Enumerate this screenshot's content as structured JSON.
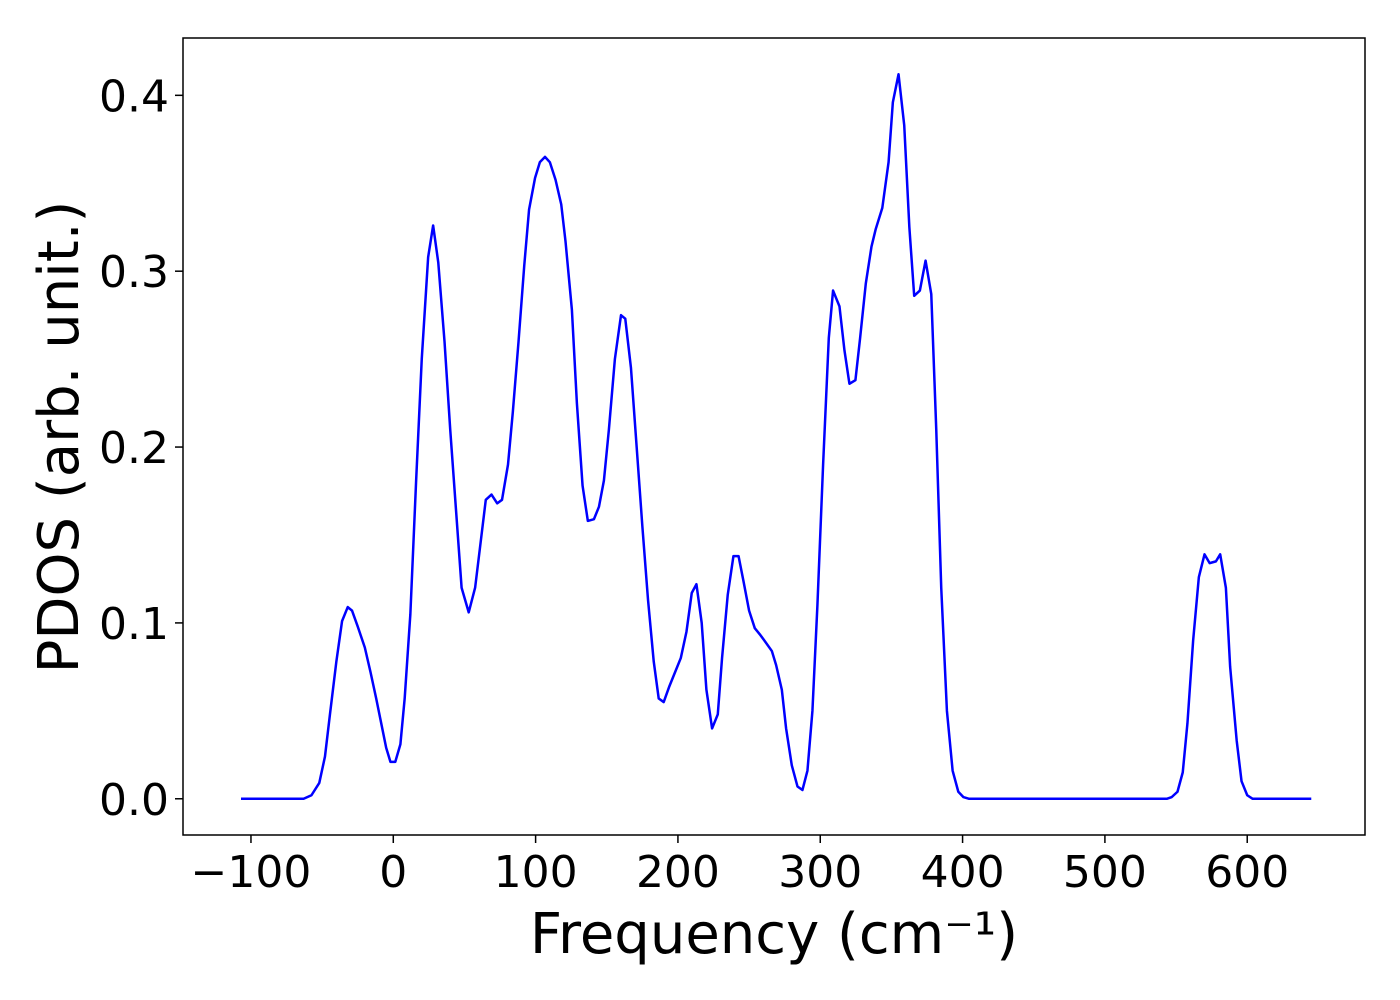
{
  "chart_data": {
    "type": "line",
    "x_label": "Frequency (cm⁻¹)",
    "y_label": "PDOS (arb. unit.)",
    "color": "#0000ff",
    "x": [
      -107,
      -63,
      -57.5,
      -52,
      -48,
      -44.5,
      -40,
      -36,
      -32,
      -29,
      -25,
      -20,
      -16,
      -12,
      -8,
      -5,
      -2,
      1.4,
      5,
      8,
      12,
      16,
      20,
      24.5,
      28,
      31.6,
      36,
      40,
      44,
      48,
      53,
      57.5,
      62,
      65,
      69,
      73,
      76.4,
      80.6,
      84,
      88,
      92,
      95.4,
      99.6,
      103,
      106.6,
      110,
      114,
      118,
      121,
      125.5,
      129,
      133,
      136.7,
      141,
      144.5,
      148,
      151.5,
      155.7,
      160,
      163,
      167,
      171,
      175,
      179,
      183,
      186.5,
      190,
      194,
      198.5,
      202,
      206,
      209.7,
      213,
      216.7,
      220,
      224,
      228,
      231,
      235,
      239,
      242.6,
      246,
      250,
      254,
      258,
      261.6,
      266,
      269,
      273,
      276,
      280,
      284,
      287.5,
      291,
      294.5,
      298,
      302,
      306,
      309,
      313.5,
      317,
      320.5,
      324.7,
      328,
      332,
      336,
      339,
      343.6,
      348,
      351,
      355,
      359,
      362.6,
      366,
      370,
      374,
      378,
      381.5,
      385,
      389,
      393,
      397,
      400.5,
      404.6,
      543.5,
      547,
      551,
      554.7,
      558,
      562,
      566,
      570,
      573.6,
      578,
      581,
      585,
      588,
      592.6,
      596,
      600,
      603.8,
      645
    ],
    "values": [
      0,
      0,
      0.002,
      0.009,
      0.024,
      0.048,
      0.078,
      0.101,
      0.109,
      0.107,
      0.098,
      0.086,
      0.072,
      0.057,
      0.041,
      0.029,
      0.021,
      0.021,
      0.031,
      0.057,
      0.105,
      0.18,
      0.25,
      0.308,
      0.326,
      0.305,
      0.26,
      0.21,
      0.165,
      0.12,
      0.106,
      0.12,
      0.15,
      0.17,
      0.173,
      0.168,
      0.17,
      0.19,
      0.22,
      0.26,
      0.303,
      0.335,
      0.353,
      0.362,
      0.365,
      0.362,
      0.352,
      0.338,
      0.317,
      0.278,
      0.225,
      0.178,
      0.158,
      0.159,
      0.166,
      0.181,
      0.21,
      0.25,
      0.275,
      0.273,
      0.245,
      0.2,
      0.155,
      0.113,
      0.078,
      0.057,
      0.055,
      0.064,
      0.073,
      0.08,
      0.095,
      0.117,
      0.122,
      0.1,
      0.062,
      0.04,
      0.048,
      0.08,
      0.116,
      0.138,
      0.138,
      0.124,
      0.107,
      0.097,
      0.093,
      0.089,
      0.084,
      0.076,
      0.062,
      0.04,
      0.019,
      0.007,
      0.005,
      0.016,
      0.05,
      0.11,
      0.19,
      0.262,
      0.289,
      0.28,
      0.255,
      0.236,
      0.238,
      0.262,
      0.293,
      0.314,
      0.324,
      0.336,
      0.362,
      0.396,
      0.412,
      0.383,
      0.325,
      0.286,
      0.289,
      0.306,
      0.287,
      0.21,
      0.12,
      0.05,
      0.016,
      0.004,
      0.001,
      0,
      0,
      0.001,
      0.004,
      0.015,
      0.043,
      0.09,
      0.126,
      0.139,
      0.134,
      0.135,
      0.139,
      0.12,
      0.075,
      0.033,
      0.01,
      0.002,
      0,
      0
    ],
    "xlim": [
      -147.75,
      682.75
    ],
    "xticks": [
      {
        "value": -100,
        "label": "−100"
      },
      0,
      100,
      200,
      300,
      400,
      500,
      600
    ],
    "ylim": [
      -0.0206,
      0.4326
    ],
    "yticks": [
      {
        "value": 0,
        "label": "0.0"
      },
      {
        "value": 0.1,
        "label": "0.1"
      },
      {
        "value": 0.2,
        "label": "0.2"
      },
      {
        "value": 0.3,
        "label": "0.3"
      },
      {
        "value": 0.4,
        "label": "0.4"
      }
    ],
    "grid": false
  }
}
